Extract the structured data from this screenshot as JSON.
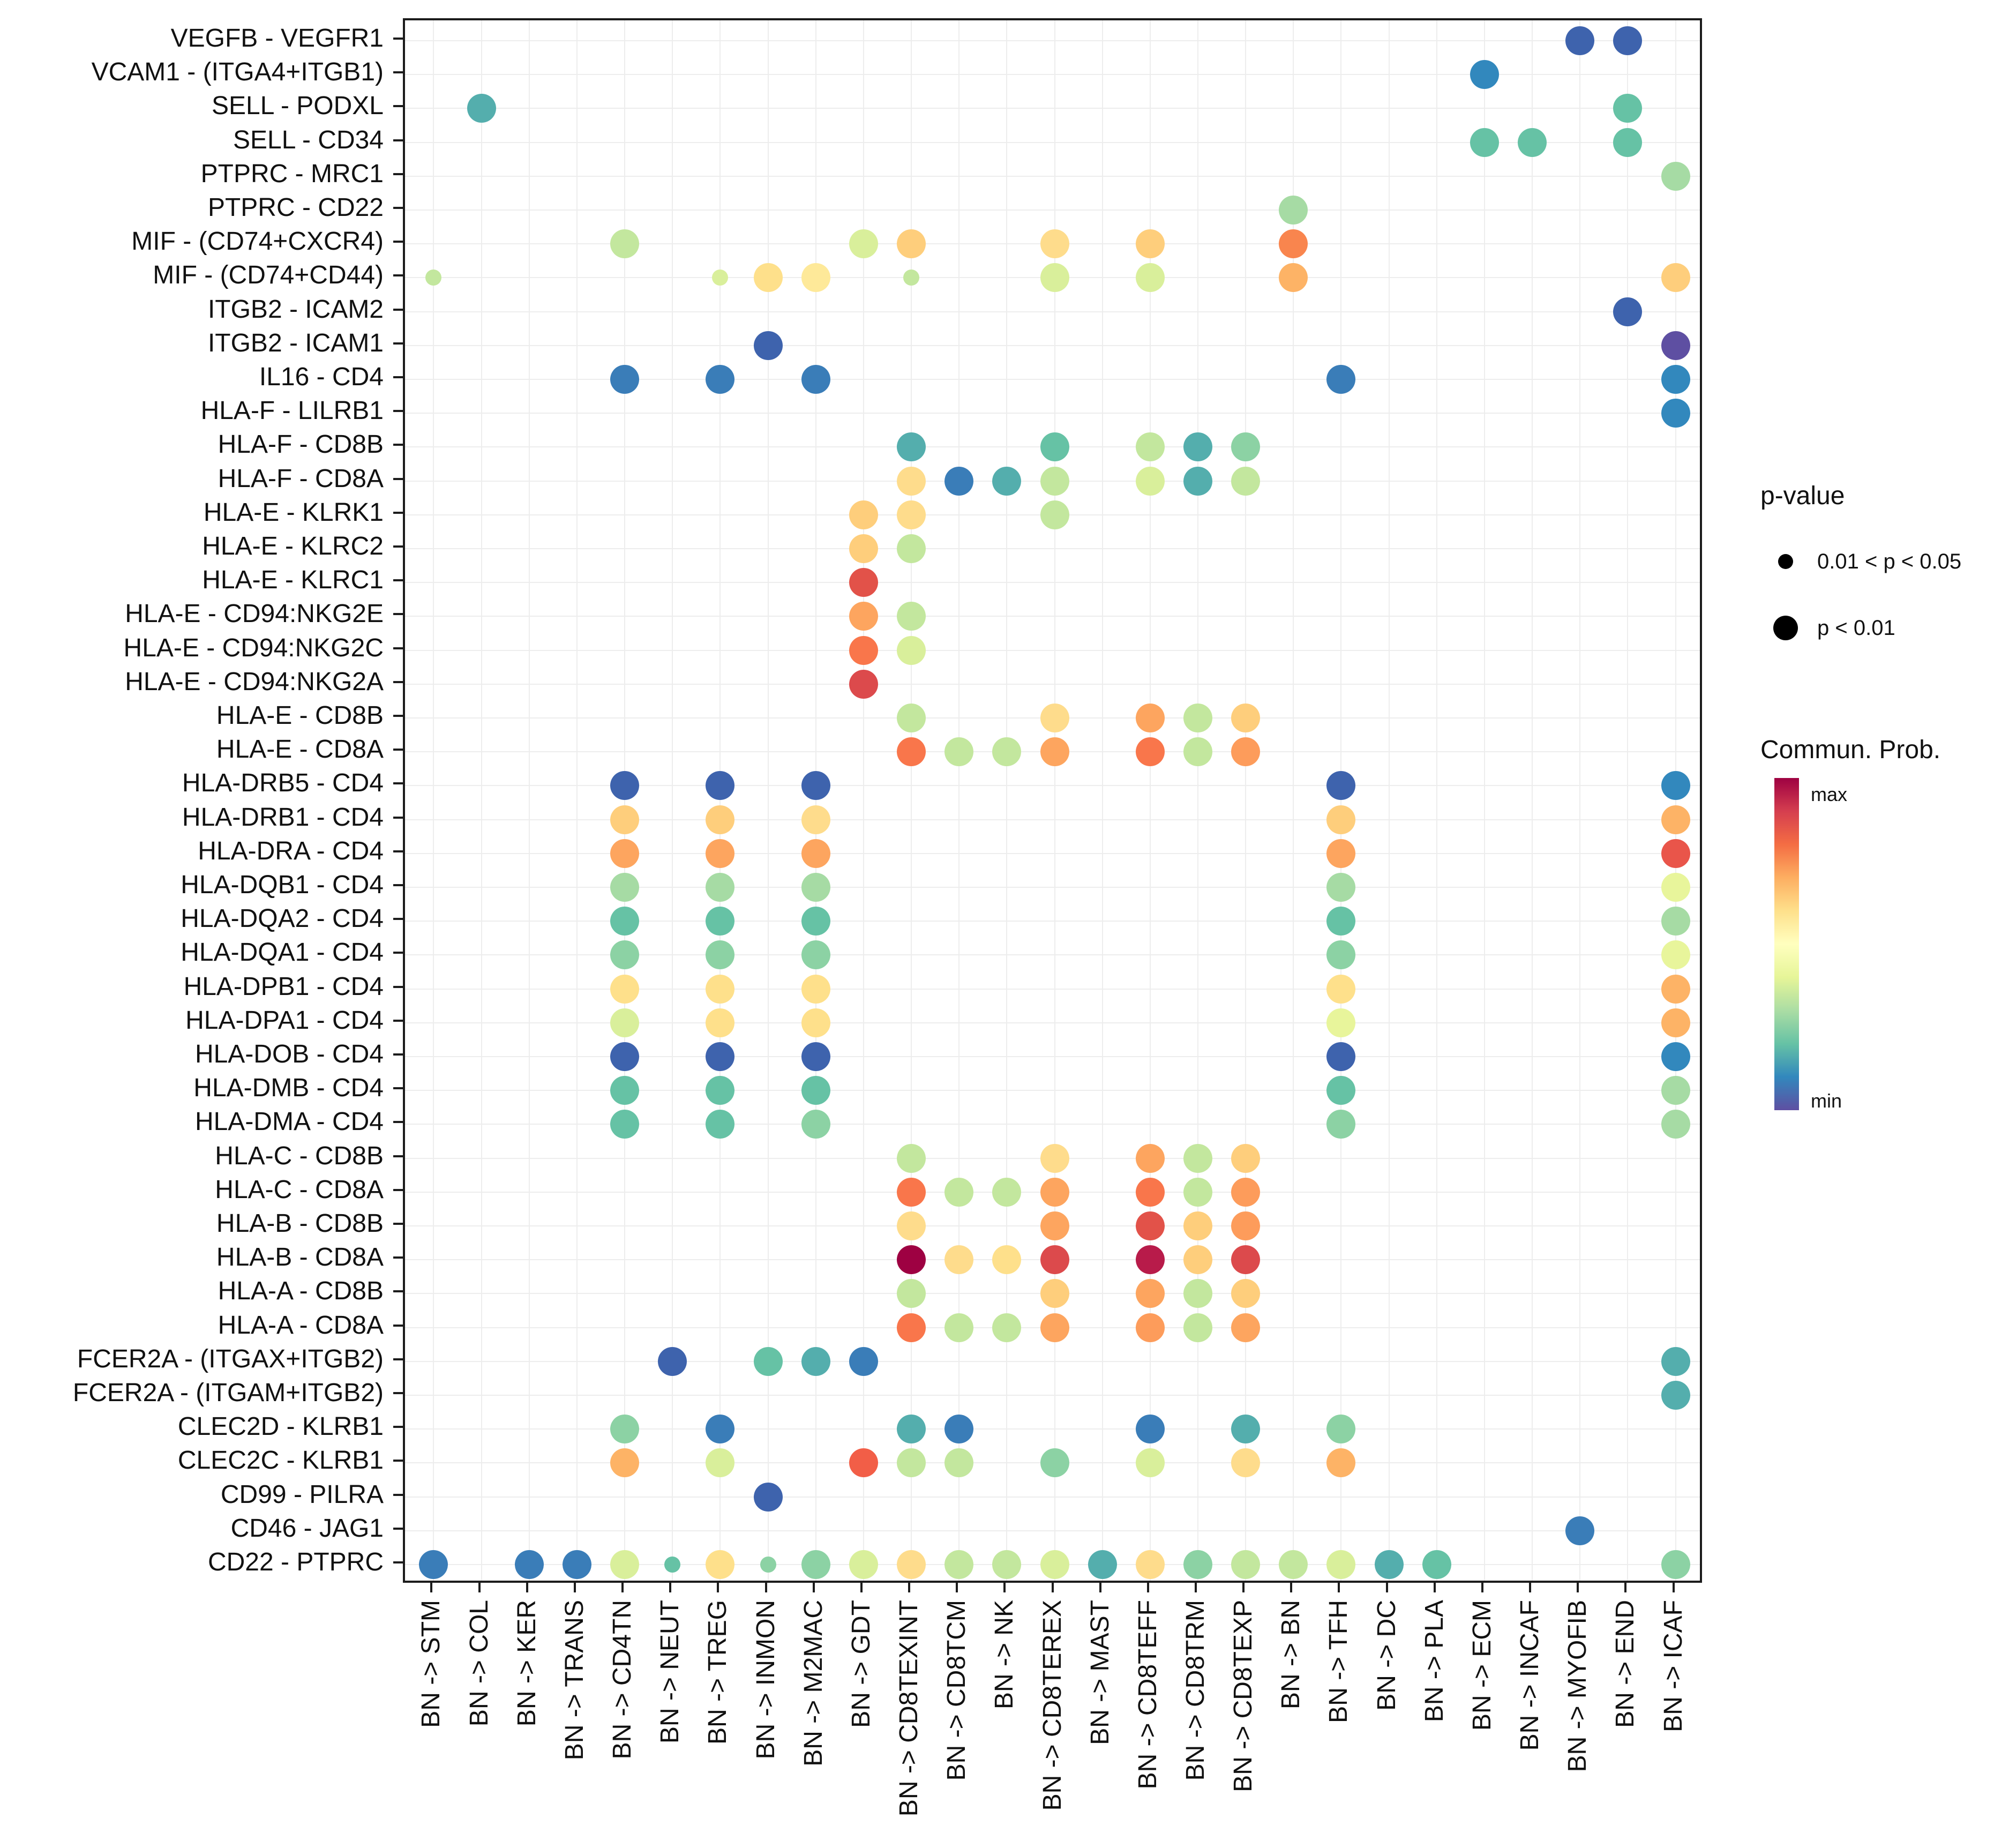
{
  "legend": {
    "pvalue_title": "p-value",
    "pvalue_items": [
      {
        "label": "0.01 < p < 0.05",
        "size": "small"
      },
      {
        "label": "p < 0.01",
        "size": "large"
      }
    ],
    "colorbar_title": "Commun. Prob.",
    "colorbar_max": "max",
    "colorbar_min": "min",
    "colorbar_colors": [
      "#9E0142",
      "#D53E4F",
      "#F46D43",
      "#FDAE61",
      "#FEE08B",
      "#FFFFBF",
      "#E6F598",
      "#ABDDA4",
      "#66C2A5",
      "#3288BD",
      "#5E4FA2"
    ]
  },
  "chart_data": {
    "type": "scatter",
    "subtype": "bubble-matrix-cellchat",
    "grid": "light-gray on white, black panel border",
    "x_categories": [
      "BN -> STM",
      "BN -> COL",
      "BN -> KER",
      "BN -> TRANS",
      "BN -> CD4TN",
      "BN -> NEUT",
      "BN -> TREG",
      "BN -> INMON",
      "BN -> M2MAC",
      "BN -> GDT",
      "BN -> CD8TEXINT",
      "BN -> CD8TCM",
      "BN -> NK",
      "BN -> CD8TEREX",
      "BN -> MAST",
      "BN -> CD8TEFF",
      "BN -> CD8TRM",
      "BN -> CD8TEXP",
      "BN -> BN",
      "BN -> TFH",
      "BN -> DC",
      "BN -> PLA",
      "BN -> ECM",
      "BN -> INCAF",
      "BN -> MYOFIB",
      "BN -> END",
      "BN -> ICAF"
    ],
    "y_categories": [
      "VEGFB - VEGFR1",
      "VCAM1 - (ITGA4+ITGB1)",
      "SELL - PODXL",
      "SELL - CD34",
      "PTPRC - MRC1",
      "PTPRC - CD22",
      "MIF - (CD74+CXCR4)",
      "MIF - (CD74+CD44)",
      "ITGB2 - ICAM2",
      "ITGB2 - ICAM1",
      "IL16 - CD4",
      "HLA-F - LILRB1",
      "HLA-F - CD8B",
      "HLA-F - CD8A",
      "HLA-E - KLRK1",
      "HLA-E - KLRC2",
      "HLA-E - KLRC1",
      "HLA-E - CD94:NKG2E",
      "HLA-E - CD94:NKG2C",
      "HLA-E - CD94:NKG2A",
      "HLA-E - CD8B",
      "HLA-E - CD8A",
      "HLA-DRB5 - CD4",
      "HLA-DRB1 - CD4",
      "HLA-DRA - CD4",
      "HLA-DQB1 - CD4",
      "HLA-DQA2 - CD4",
      "HLA-DQA1 - CD4",
      "HLA-DPB1 - CD4",
      "HLA-DPA1 - CD4",
      "HLA-DOB - CD4",
      "HLA-DMB - CD4",
      "HLA-DMA - CD4",
      "HLA-C - CD8B",
      "HLA-C - CD8A",
      "HLA-B - CD8B",
      "HLA-B - CD8A",
      "HLA-A - CD8B",
      "HLA-A - CD8A",
      "FCER2A - (ITGAX+ITGB2)",
      "FCER2A - (ITGAM+ITGB2)",
      "CLEC2D - KLRB1",
      "CLEC2C - KLRB1",
      "CD99 - PILRA",
      "CD46 - JAG1",
      "CD22 - PTPRC"
    ],
    "size_encoding": {
      "L": "p < 0.01",
      "S": "0.01 < p < 0.05"
    },
    "color_encoding": "Commun. Prob. (Spectral reversed: purple=min, dark red=max)",
    "point_format": "[y_index, x_index, color_hex, size]",
    "points": [
      [
        0,
        24,
        "#3E63AD",
        "L"
      ],
      [
        0,
        25,
        "#3E63AD",
        "L"
      ],
      [
        1,
        22,
        "#3288BD",
        "L"
      ],
      [
        2,
        1,
        "#54AEAD",
        "L"
      ],
      [
        2,
        25,
        "#66C2A5",
        "L"
      ],
      [
        3,
        22,
        "#66C2A5",
        "L"
      ],
      [
        3,
        23,
        "#66C2A5",
        "L"
      ],
      [
        3,
        25,
        "#66C2A5",
        "L"
      ],
      [
        4,
        26,
        "#A6DBA4",
        "L"
      ],
      [
        5,
        18,
        "#A6DBA4",
        "L"
      ],
      [
        6,
        4,
        "#C3E79E",
        "L"
      ],
      [
        6,
        9,
        "#D9EF9B",
        "L"
      ],
      [
        6,
        10,
        "#FECE7C",
        "L"
      ],
      [
        6,
        13,
        "#FEDC8C",
        "L"
      ],
      [
        6,
        15,
        "#FECE7C",
        "L"
      ],
      [
        6,
        18,
        "#F9854E",
        "L"
      ],
      [
        7,
        0,
        "#C3E79E",
        "S"
      ],
      [
        7,
        6,
        "#D9EF9B",
        "S"
      ],
      [
        7,
        7,
        "#FEE08B",
        "L"
      ],
      [
        7,
        8,
        "#FEE999",
        "L"
      ],
      [
        7,
        10,
        "#C3E79E",
        "S"
      ],
      [
        7,
        13,
        "#D9EF9B",
        "L"
      ],
      [
        7,
        15,
        "#D9EF9B",
        "L"
      ],
      [
        7,
        18,
        "#FDB366",
        "L"
      ],
      [
        7,
        26,
        "#FECE7C",
        "L"
      ],
      [
        8,
        25,
        "#3E63AD",
        "L"
      ],
      [
        9,
        7,
        "#3E63AD",
        "L"
      ],
      [
        9,
        26,
        "#5E4FA2",
        "L"
      ],
      [
        10,
        4,
        "#3A7DB8",
        "L"
      ],
      [
        10,
        6,
        "#3A7DB8",
        "L"
      ],
      [
        10,
        8,
        "#3A7DB8",
        "L"
      ],
      [
        10,
        19,
        "#3A7DB8",
        "L"
      ],
      [
        10,
        26,
        "#3288BD",
        "L"
      ],
      [
        11,
        26,
        "#3288BD",
        "L"
      ],
      [
        12,
        10,
        "#54AEAD",
        "L"
      ],
      [
        12,
        13,
        "#66C2A5",
        "L"
      ],
      [
        12,
        15,
        "#C3E79E",
        "L"
      ],
      [
        12,
        16,
        "#54AEAD",
        "L"
      ],
      [
        12,
        17,
        "#8CD2A4",
        "L"
      ],
      [
        13,
        10,
        "#FEDC8C",
        "L"
      ],
      [
        13,
        11,
        "#3A7DB8",
        "L"
      ],
      [
        13,
        12,
        "#54AEAD",
        "L"
      ],
      [
        13,
        13,
        "#C3E79E",
        "L"
      ],
      [
        13,
        15,
        "#D9EF9B",
        "L"
      ],
      [
        13,
        16,
        "#54AEAD",
        "L"
      ],
      [
        13,
        17,
        "#C3E79E",
        "L"
      ],
      [
        14,
        9,
        "#FECE7C",
        "L"
      ],
      [
        14,
        10,
        "#FEDC8C",
        "L"
      ],
      [
        14,
        13,
        "#C3E79E",
        "L"
      ],
      [
        15,
        9,
        "#FECE7C",
        "L"
      ],
      [
        15,
        10,
        "#C3E79E",
        "L"
      ],
      [
        16,
        9,
        "#E25249",
        "L"
      ],
      [
        17,
        9,
        "#FDA55F",
        "L"
      ],
      [
        17,
        10,
        "#C3E79E",
        "L"
      ],
      [
        18,
        9,
        "#F9764B",
        "L"
      ],
      [
        18,
        10,
        "#D9EF9B",
        "L"
      ],
      [
        19,
        9,
        "#DC4A4C",
        "L"
      ],
      [
        20,
        10,
        "#C3E79E",
        "L"
      ],
      [
        20,
        13,
        "#FEDC8C",
        "L"
      ],
      [
        20,
        15,
        "#FDA55F",
        "L"
      ],
      [
        20,
        16,
        "#C3E79E",
        "L"
      ],
      [
        20,
        17,
        "#FECE7C",
        "L"
      ],
      [
        21,
        10,
        "#F9764B",
        "L"
      ],
      [
        21,
        11,
        "#C3E79E",
        "L"
      ],
      [
        21,
        12,
        "#C3E79E",
        "L"
      ],
      [
        21,
        13,
        "#FDA55F",
        "L"
      ],
      [
        21,
        15,
        "#F9764B",
        "L"
      ],
      [
        21,
        16,
        "#C3E79E",
        "L"
      ],
      [
        21,
        17,
        "#FD9C5B",
        "L"
      ],
      [
        22,
        4,
        "#3E63AD",
        "L"
      ],
      [
        22,
        6,
        "#3E63AD",
        "L"
      ],
      [
        22,
        8,
        "#3E63AD",
        "L"
      ],
      [
        22,
        19,
        "#3E63AD",
        "L"
      ],
      [
        22,
        26,
        "#3288BD",
        "L"
      ],
      [
        23,
        4,
        "#FECE7C",
        "L"
      ],
      [
        23,
        6,
        "#FECE7C",
        "L"
      ],
      [
        23,
        8,
        "#FEDC8C",
        "L"
      ],
      [
        23,
        19,
        "#FECE7C",
        "L"
      ],
      [
        23,
        26,
        "#FDB366",
        "L"
      ],
      [
        24,
        4,
        "#FDA55F",
        "L"
      ],
      [
        24,
        6,
        "#FDA55F",
        "L"
      ],
      [
        24,
        8,
        "#FDA55F",
        "L"
      ],
      [
        24,
        19,
        "#FDA55F",
        "L"
      ],
      [
        24,
        26,
        "#E9554A",
        "L"
      ],
      [
        25,
        4,
        "#A6DBA4",
        "L"
      ],
      [
        25,
        6,
        "#A6DBA4",
        "L"
      ],
      [
        25,
        8,
        "#A6DBA4",
        "L"
      ],
      [
        25,
        19,
        "#A6DBA4",
        "L"
      ],
      [
        25,
        26,
        "#E8F59B",
        "L"
      ],
      [
        26,
        4,
        "#66C2A5",
        "L"
      ],
      [
        26,
        6,
        "#66C2A5",
        "L"
      ],
      [
        26,
        8,
        "#66C2A5",
        "L"
      ],
      [
        26,
        19,
        "#66C2A5",
        "L"
      ],
      [
        26,
        26,
        "#A6DBA4",
        "L"
      ],
      [
        27,
        4,
        "#8CD2A4",
        "L"
      ],
      [
        27,
        6,
        "#8CD2A4",
        "L"
      ],
      [
        27,
        8,
        "#8CD2A4",
        "L"
      ],
      [
        27,
        19,
        "#8CD2A4",
        "L"
      ],
      [
        27,
        26,
        "#E8F59B",
        "L"
      ],
      [
        28,
        4,
        "#FEE08B",
        "L"
      ],
      [
        28,
        6,
        "#FEE08B",
        "L"
      ],
      [
        28,
        8,
        "#FEE08B",
        "L"
      ],
      [
        28,
        19,
        "#FEE08B",
        "L"
      ],
      [
        28,
        26,
        "#FDB366",
        "L"
      ],
      [
        29,
        4,
        "#D9EF9B",
        "L"
      ],
      [
        29,
        6,
        "#FEE08B",
        "L"
      ],
      [
        29,
        8,
        "#FEE08B",
        "L"
      ],
      [
        29,
        19,
        "#E8F59B",
        "L"
      ],
      [
        29,
        26,
        "#FDB366",
        "L"
      ],
      [
        30,
        4,
        "#3E63AD",
        "L"
      ],
      [
        30,
        6,
        "#3E63AD",
        "L"
      ],
      [
        30,
        8,
        "#3E63AD",
        "L"
      ],
      [
        30,
        19,
        "#3E63AD",
        "L"
      ],
      [
        30,
        26,
        "#3288BD",
        "L"
      ],
      [
        31,
        4,
        "#66C2A5",
        "L"
      ],
      [
        31,
        6,
        "#66C2A5",
        "L"
      ],
      [
        31,
        8,
        "#66C2A5",
        "L"
      ],
      [
        31,
        19,
        "#66C2A5",
        "L"
      ],
      [
        31,
        26,
        "#A6DBA4",
        "L"
      ],
      [
        32,
        4,
        "#66C2A5",
        "L"
      ],
      [
        32,
        6,
        "#66C2A5",
        "L"
      ],
      [
        32,
        8,
        "#8CD2A4",
        "L"
      ],
      [
        32,
        19,
        "#8CD2A4",
        "L"
      ],
      [
        32,
        26,
        "#A6DBA4",
        "L"
      ],
      [
        33,
        10,
        "#C3E79E",
        "L"
      ],
      [
        33,
        13,
        "#FEDC8C",
        "L"
      ],
      [
        33,
        15,
        "#FDA55F",
        "L"
      ],
      [
        33,
        16,
        "#C3E79E",
        "L"
      ],
      [
        33,
        17,
        "#FECE7C",
        "L"
      ],
      [
        34,
        10,
        "#F9764B",
        "L"
      ],
      [
        34,
        11,
        "#C3E79E",
        "L"
      ],
      [
        34,
        12,
        "#C3E79E",
        "L"
      ],
      [
        34,
        13,
        "#FDA55F",
        "L"
      ],
      [
        34,
        15,
        "#F9764B",
        "L"
      ],
      [
        34,
        16,
        "#C3E79E",
        "L"
      ],
      [
        34,
        17,
        "#FD9C5B",
        "L"
      ],
      [
        35,
        10,
        "#FEDC8C",
        "L"
      ],
      [
        35,
        13,
        "#FDA55F",
        "L"
      ],
      [
        35,
        15,
        "#E25249",
        "L"
      ],
      [
        35,
        16,
        "#FECE7C",
        "L"
      ],
      [
        35,
        17,
        "#FD9C5B",
        "L"
      ],
      [
        36,
        10,
        "#9E0142",
        "L"
      ],
      [
        36,
        11,
        "#FEDC8C",
        "L"
      ],
      [
        36,
        12,
        "#FEE08B",
        "L"
      ],
      [
        36,
        13,
        "#DC4A4C",
        "L"
      ],
      [
        36,
        15,
        "#B81B4A",
        "L"
      ],
      [
        36,
        16,
        "#FECE7C",
        "L"
      ],
      [
        36,
        17,
        "#DC4A4C",
        "L"
      ],
      [
        37,
        10,
        "#C3E79E",
        "L"
      ],
      [
        37,
        13,
        "#FECE7C",
        "L"
      ],
      [
        37,
        15,
        "#FDA55F",
        "L"
      ],
      [
        37,
        16,
        "#C3E79E",
        "L"
      ],
      [
        37,
        17,
        "#FECE7C",
        "L"
      ],
      [
        38,
        10,
        "#F9764B",
        "L"
      ],
      [
        38,
        11,
        "#C3E79E",
        "L"
      ],
      [
        38,
        12,
        "#C3E79E",
        "L"
      ],
      [
        38,
        13,
        "#FDA55F",
        "L"
      ],
      [
        38,
        15,
        "#FD9C5B",
        "L"
      ],
      [
        38,
        16,
        "#C3E79E",
        "L"
      ],
      [
        38,
        17,
        "#FDA55F",
        "L"
      ],
      [
        39,
        5,
        "#3E63AD",
        "L"
      ],
      [
        39,
        7,
        "#66C2A5",
        "L"
      ],
      [
        39,
        8,
        "#54AEAD",
        "L"
      ],
      [
        39,
        9,
        "#3A7DB8",
        "L"
      ],
      [
        39,
        26,
        "#54AEAD",
        "L"
      ],
      [
        40,
        26,
        "#54AEAD",
        "L"
      ],
      [
        41,
        4,
        "#8CD2A4",
        "L"
      ],
      [
        41,
        6,
        "#3A7DB8",
        "L"
      ],
      [
        41,
        10,
        "#54AEAD",
        "L"
      ],
      [
        41,
        11,
        "#3A7DB8",
        "L"
      ],
      [
        41,
        15,
        "#3A7DB8",
        "L"
      ],
      [
        41,
        17,
        "#54AEAD",
        "L"
      ],
      [
        41,
        19,
        "#8CD2A4",
        "L"
      ],
      [
        42,
        4,
        "#FDB366",
        "L"
      ],
      [
        42,
        6,
        "#D9EF9B",
        "L"
      ],
      [
        42,
        9,
        "#F25E47",
        "L"
      ],
      [
        42,
        10,
        "#C3E79E",
        "L"
      ],
      [
        42,
        11,
        "#C3E79E",
        "L"
      ],
      [
        42,
        13,
        "#8CD2A4",
        "L"
      ],
      [
        42,
        15,
        "#D9EF9B",
        "L"
      ],
      [
        42,
        17,
        "#FEDC8C",
        "L"
      ],
      [
        42,
        19,
        "#FDB366",
        "L"
      ],
      [
        43,
        7,
        "#3E63AD",
        "L"
      ],
      [
        44,
        24,
        "#3A7DB8",
        "L"
      ],
      [
        45,
        0,
        "#3A7DB8",
        "L"
      ],
      [
        45,
        2,
        "#3A7DB8",
        "L"
      ],
      [
        45,
        3,
        "#3A7DB8",
        "L"
      ],
      [
        45,
        4,
        "#D9EF9B",
        "L"
      ],
      [
        45,
        5,
        "#66C2A5",
        "S"
      ],
      [
        45,
        6,
        "#FEE08B",
        "L"
      ],
      [
        45,
        7,
        "#8CD2A4",
        "S"
      ],
      [
        45,
        8,
        "#8CD2A4",
        "L"
      ],
      [
        45,
        9,
        "#D9EF9B",
        "L"
      ],
      [
        45,
        10,
        "#FEDC8C",
        "L"
      ],
      [
        45,
        11,
        "#C3E79E",
        "L"
      ],
      [
        45,
        12,
        "#C3E79E",
        "L"
      ],
      [
        45,
        13,
        "#D9EF9B",
        "L"
      ],
      [
        45,
        14,
        "#54AEAD",
        "L"
      ],
      [
        45,
        15,
        "#FEDC8C",
        "L"
      ],
      [
        45,
        16,
        "#8CD2A4",
        "L"
      ],
      [
        45,
        17,
        "#C3E79E",
        "L"
      ],
      [
        45,
        18,
        "#C3E79E",
        "L"
      ],
      [
        45,
        19,
        "#D9EF9B",
        "L"
      ],
      [
        45,
        20,
        "#54AEAD",
        "L"
      ],
      [
        45,
        21,
        "#66C2A5",
        "L"
      ],
      [
        45,
        26,
        "#8CD2A4",
        "L"
      ]
    ]
  }
}
